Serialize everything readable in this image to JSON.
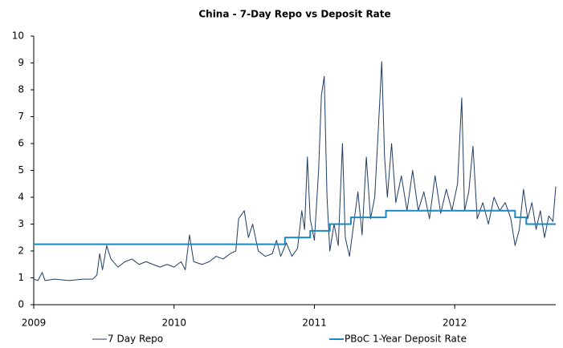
{
  "chart_data": {
    "type": "line",
    "title": "China - 7-Day Repo vs Deposit Rate",
    "xlim": [
      2009,
      2012.72
    ],
    "xticks": [
      2009,
      2010,
      2011,
      2012
    ],
    "ylim": [
      0,
      10
    ],
    "yticks": [
      0,
      1,
      2,
      3,
      4,
      5,
      6,
      7,
      8,
      9,
      10
    ],
    "grid": false,
    "legend": "bottom",
    "series": [
      {
        "name": "7 Day Repo",
        "color": "#1f3d63",
        "x": [
          2009.0,
          2009.03,
          2009.06,
          2009.08,
          2009.15,
          2009.25,
          2009.35,
          2009.42,
          2009.45,
          2009.47,
          2009.49,
          2009.52,
          2009.55,
          2009.6,
          2009.65,
          2009.7,
          2009.75,
          2009.8,
          2009.85,
          2009.9,
          2009.95,
          2010.0,
          2010.05,
          2010.08,
          2010.11,
          2010.14,
          2010.2,
          2010.25,
          2010.3,
          2010.35,
          2010.4,
          2010.44,
          2010.46,
          2010.5,
          2010.53,
          2010.56,
          2010.6,
          2010.65,
          2010.7,
          2010.73,
          2010.76,
          2010.8,
          2010.84,
          2010.88,
          2010.91,
          2010.93,
          2010.95,
          2010.97,
          2011.0,
          2011.03,
          2011.05,
          2011.07,
          2011.09,
          2011.11,
          2011.14,
          2011.17,
          2011.2,
          2011.22,
          2011.25,
          2011.28,
          2011.31,
          2011.34,
          2011.37,
          2011.4,
          2011.43,
          2011.46,
          2011.48,
          2011.5,
          2011.52,
          2011.55,
          2011.58,
          2011.62,
          2011.66,
          2011.7,
          2011.74,
          2011.78,
          2011.82,
          2011.86,
          2011.9,
          2011.94,
          2011.98,
          2012.02,
          2012.05,
          2012.07,
          2012.1,
          2012.13,
          2012.16,
          2012.2,
          2012.24,
          2012.28,
          2012.32,
          2012.36,
          2012.4,
          2012.43,
          2012.46,
          2012.49,
          2012.52,
          2012.55,
          2012.58,
          2012.61,
          2012.64,
          2012.67,
          2012.7,
          2012.72
        ],
        "values": [
          0.95,
          0.9,
          1.2,
          0.9,
          0.95,
          0.9,
          0.95,
          0.95,
          1.1,
          1.9,
          1.3,
          2.2,
          1.7,
          1.4,
          1.6,
          1.7,
          1.5,
          1.6,
          1.5,
          1.4,
          1.5,
          1.4,
          1.6,
          1.3,
          2.6,
          1.6,
          1.5,
          1.6,
          1.8,
          1.7,
          1.9,
          2.0,
          3.2,
          3.5,
          2.5,
          3.0,
          2.0,
          1.8,
          1.9,
          2.4,
          1.8,
          2.3,
          1.8,
          2.1,
          3.5,
          2.8,
          5.5,
          3.2,
          2.4,
          5.0,
          7.8,
          8.5,
          4.0,
          2.0,
          3.0,
          2.2,
          6.0,
          2.5,
          1.8,
          3.0,
          4.2,
          2.6,
          5.5,
          3.2,
          4.0,
          7.0,
          9.05,
          5.5,
          4.0,
          6.0,
          3.8,
          4.8,
          3.5,
          5.0,
          3.5,
          4.2,
          3.2,
          4.8,
          3.4,
          4.3,
          3.5,
          4.5,
          7.7,
          3.5,
          4.2,
          5.9,
          3.2,
          3.8,
          3.0,
          4.0,
          3.5,
          3.8,
          3.2,
          2.2,
          2.8,
          4.3,
          3.2,
          3.8,
          2.8,
          3.5,
          2.5,
          3.3,
          3.1,
          4.4
        ]
      },
      {
        "name": "PBoC 1-Year Deposit Rate",
        "color": "#1a87c1",
        "x": [
          2009.0,
          2010.79,
          2010.79,
          2010.97,
          2010.97,
          2011.11,
          2011.11,
          2011.26,
          2011.26,
          2011.51,
          2011.51,
          2012.43,
          2012.43,
          2012.51,
          2012.51,
          2012.72
        ],
        "values": [
          2.25,
          2.25,
          2.5,
          2.5,
          2.75,
          2.75,
          3,
          3,
          3.25,
          3.25,
          3.5,
          3.5,
          3.25,
          3.25,
          3,
          3
        ]
      }
    ]
  }
}
